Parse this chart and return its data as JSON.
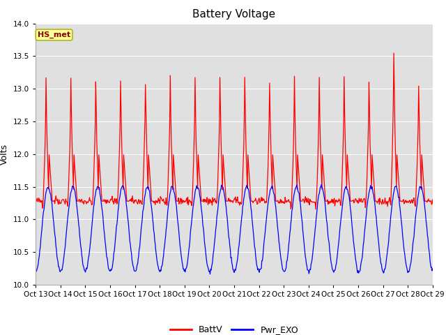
{
  "title": "Battery Voltage",
  "ylabel": "Volts",
  "ylim": [
    10.0,
    14.0
  ],
  "yticks": [
    10.0,
    10.5,
    11.0,
    11.5,
    12.0,
    12.5,
    13.0,
    13.5,
    14.0
  ],
  "xtick_labels": [
    "Oct 13",
    "Oct 14",
    "Oct 15",
    "Oct 16",
    "Oct 17",
    "Oct 18",
    "Oct 19",
    "Oct 20",
    "Oct 21",
    "Oct 22",
    "Oct 23",
    "Oct 24",
    "Oct 25",
    "Oct 26",
    "Oct 27",
    "Oct 28",
    "Oct 29"
  ],
  "annotation_text": "HS_met",
  "annotation_color": "#8B0000",
  "annotation_bg": "#FFFF99",
  "legend_items": [
    "BattV",
    "Pwr_EXO"
  ],
  "line_colors": [
    "red",
    "blue"
  ],
  "bg_color": "#e0e0e0",
  "title_fontsize": 11,
  "label_fontsize": 9,
  "tick_fontsize": 7.5
}
